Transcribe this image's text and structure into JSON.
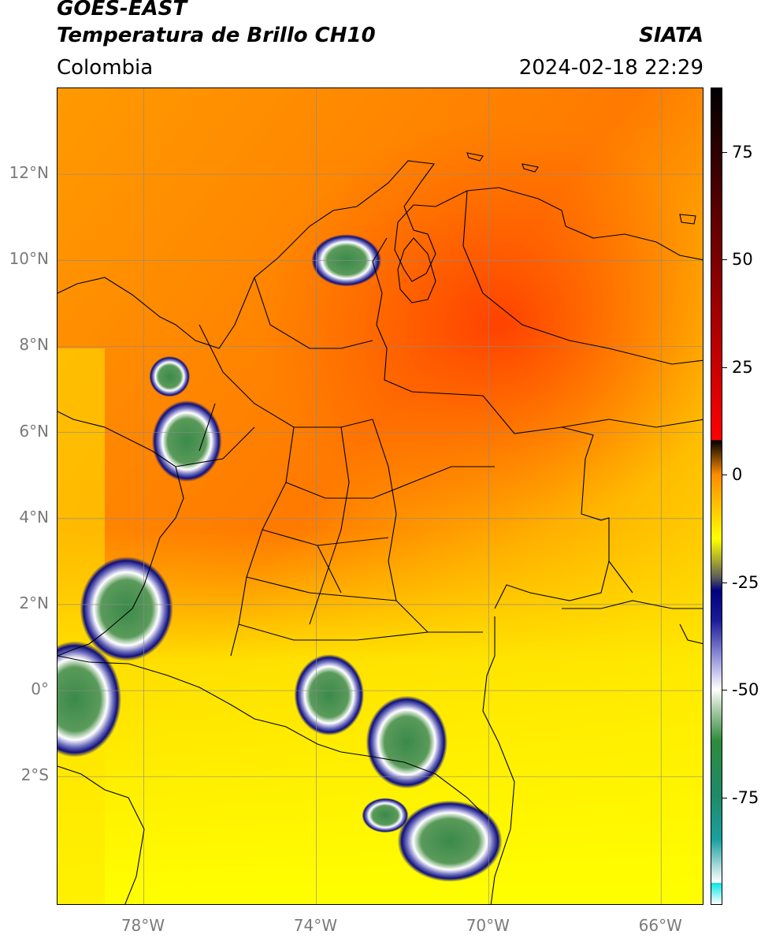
{
  "header": {
    "satellite": "GOES-EAST",
    "product": "Temperatura de Brillo CH10",
    "region": "Colombia",
    "source": "SIATA",
    "datetime": "2024-02-18 22:29"
  },
  "map": {
    "lon_range": [
      -80.0,
      -65.0
    ],
    "lat_range": [
      -5.0,
      14.0
    ],
    "gridlines": true,
    "lat_ticks": [
      {
        "value": 12,
        "label": "12°N"
      },
      {
        "value": 10,
        "label": "10°N"
      },
      {
        "value": 8,
        "label": "8°N"
      },
      {
        "value": 6,
        "label": "6°N"
      },
      {
        "value": 4,
        "label": "4°N"
      },
      {
        "value": 2,
        "label": "2°N"
      },
      {
        "value": 0,
        "label": "0°"
      },
      {
        "value": -2,
        "label": "2°S"
      }
    ],
    "lon_ticks": [
      {
        "value": -78,
        "label": "78°W"
      },
      {
        "value": -74,
        "label": "74°W"
      },
      {
        "value": -70,
        "label": "70°W"
      },
      {
        "value": -66,
        "label": "66°W"
      }
    ],
    "cloud_cells": [
      {
        "lon": -73.3,
        "lat": 10.0,
        "rx": 0.6,
        "ry": 0.45
      },
      {
        "lon": -77.4,
        "lat": 7.3,
        "rx": 0.35,
        "ry": 0.35
      },
      {
        "lon": -77.0,
        "lat": 5.8,
        "rx": 0.6,
        "ry": 0.7
      },
      {
        "lon": -78.4,
        "lat": 1.9,
        "rx": 0.8,
        "ry": 0.9
      },
      {
        "lon": -79.6,
        "lat": -0.2,
        "rx": 0.8,
        "ry": 1.0
      },
      {
        "lon": -73.7,
        "lat": -0.1,
        "rx": 0.6,
        "ry": 0.7
      },
      {
        "lon": -71.9,
        "lat": -1.2,
        "rx": 0.7,
        "ry": 0.8
      },
      {
        "lon": -70.9,
        "lat": -3.5,
        "rx": 0.9,
        "ry": 0.7
      },
      {
        "lon": -72.4,
        "lat": -2.9,
        "rx": 0.4,
        "ry": 0.3
      }
    ]
  },
  "colorbar": {
    "range": [
      -100,
      90
    ],
    "ticks": [
      {
        "value": 75,
        "label": "75"
      },
      {
        "value": 50,
        "label": "50"
      },
      {
        "value": 25,
        "label": "25"
      },
      {
        "value": 0,
        "label": "0"
      },
      {
        "value": -25,
        "label": "-25"
      },
      {
        "value": -50,
        "label": "-50"
      },
      {
        "value": -75,
        "label": "-75"
      }
    ],
    "stops": [
      {
        "value": -100,
        "color": "#ffffff"
      },
      {
        "value": -95,
        "color": "#ffffff"
      },
      {
        "value": -95,
        "color": "#00e5e5"
      },
      {
        "value": -85,
        "color": "#1aa0a0"
      },
      {
        "value": -75,
        "color": "#1f8a6a"
      },
      {
        "value": -62,
        "color": "#2e8b3c"
      },
      {
        "value": -55,
        "color": "#a5c9a5"
      },
      {
        "value": -50,
        "color": "#ffffff"
      },
      {
        "value": -42,
        "color": "#8c8cd6"
      },
      {
        "value": -34,
        "color": "#1c1c9a"
      },
      {
        "value": -27,
        "color": "#000080"
      },
      {
        "value": -24,
        "color": "#5a5a5a"
      },
      {
        "value": -20,
        "color": "#a8a830"
      },
      {
        "value": -15,
        "color": "#ffff00"
      },
      {
        "value": -8,
        "color": "#ffc800"
      },
      {
        "value": 0,
        "color": "#ff8c00"
      },
      {
        "value": 8,
        "color": "#ff0000"
      },
      {
        "value": 8,
        "color": "#000000"
      },
      {
        "value": 90,
        "color": "#000000"
      }
    ]
  }
}
